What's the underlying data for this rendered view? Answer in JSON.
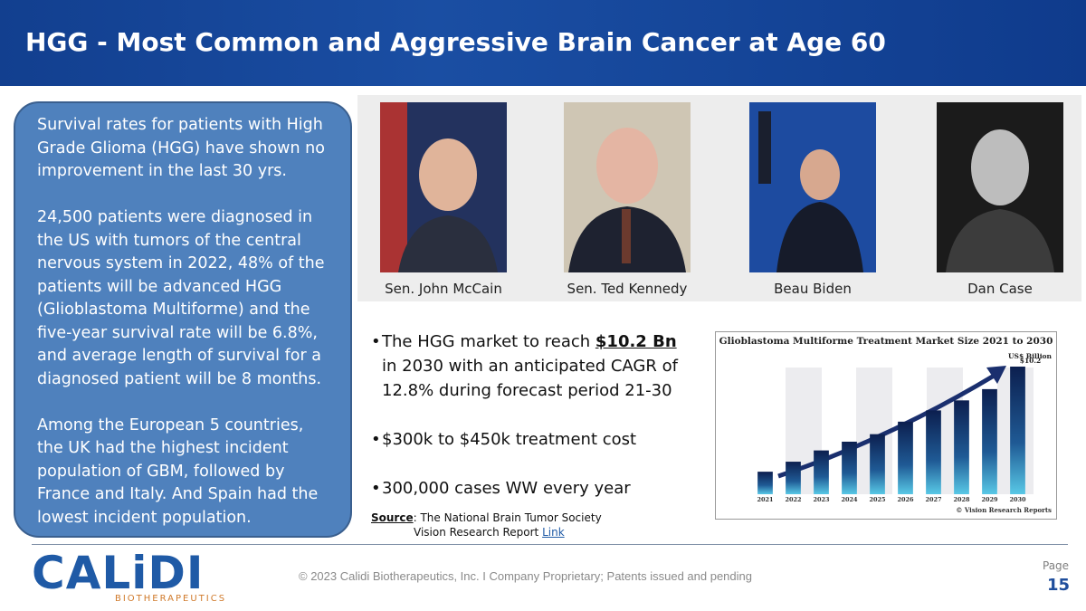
{
  "header": {
    "title": "HGG - Most Common and Aggressive Brain Cancer at Age 60"
  },
  "left_box": {
    "paragraphs": [
      "Survival rates for patients with High Grade Glioma (HGG) have shown no improvement in the last 30 yrs.",
      "24,500 patients were diagnosed  in the US with tumors of the central nervous system in 2022, 48% of the patients will be advanced HGG (Glioblastoma Multiforme) and the five-year survival rate will be 6.8%, and average length of survival for a diagnosed patient will be 8 months.",
      "Among the European 5 countries, the UK had the highest incident population of GBM, followed by France and Italy. And Spain had the lowest incident population."
    ]
  },
  "photos": {
    "captions": [
      "Sen. John McCain",
      "Sen. Ted Kennedy",
      "Beau Biden",
      "Dan Case"
    ]
  },
  "bullets": [
    {
      "parts": [
        "The HGG market to reach ",
        "$10.2 Bn ",
        "in 2030 with an anticipated CAGR of 12.8% during forecast period 21-30"
      ]
    },
    {
      "parts": [
        "$300k to $450k treatment cost"
      ]
    },
    {
      "parts": [
        "300,000 cases WW every year"
      ]
    }
  ],
  "source": {
    "label": "Source",
    "line1": ": The National Brain Tumor Society",
    "line2": "Vision Research Report ",
    "link": "Link"
  },
  "footer": {
    "logo": "CALiDI",
    "logo_sub": "BIOTHERAPEUTICS",
    "copyright": "© 2023 Calidi Biotherapeutics, Inc. I  Company Proprietary; Patents issued and pending",
    "page_label": "Page",
    "page_number": "15"
  },
  "chart_data": {
    "type": "bar",
    "title": "Glioblastoma Multiforme Treatment Market Size 2021 to 2030",
    "unit": "US$ Billion",
    "credit": "© Vision Research Reports",
    "categories": [
      "2021",
      "2022",
      "2023",
      "2024",
      "2025",
      "2026",
      "2027",
      "2028",
      "2029",
      "2030"
    ],
    "values": [
      1.8,
      2.6,
      3.5,
      4.2,
      4.8,
      5.8,
      6.7,
      7.5,
      8.4,
      10.2
    ],
    "value_labels": [
      null,
      null,
      null,
      null,
      null,
      null,
      null,
      null,
      null,
      "$10.2"
    ]
  }
}
